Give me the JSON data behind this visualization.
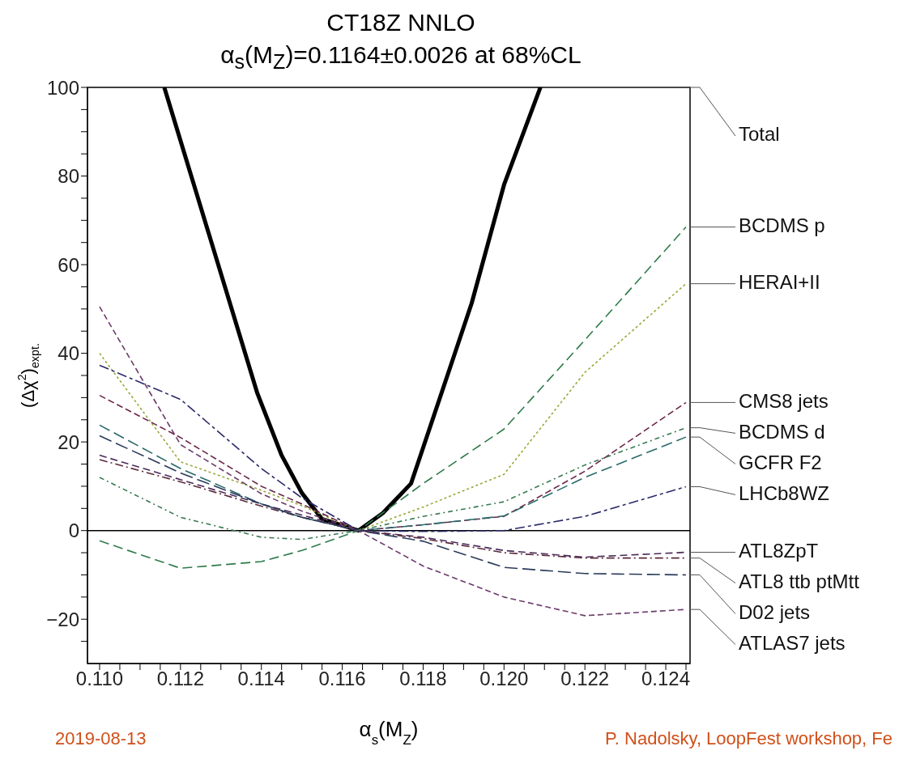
{
  "chart_data": {
    "type": "line",
    "title": "CT18Z NNLO",
    "subtitle": "α$_{s}$(M$_{Z}$)=0.1164±0.0026 at 68%CL",
    "xlabel": "α$_{s}$(M$_{Z}$)",
    "ylabel": "(Δχ$^{2}$)$_{expt.}$",
    "annotations": [
      "2019-08-13",
      "P. Nadolsky, LoopFest workshop, Fe"
    ],
    "x": [
      0.11,
      0.112,
      0.114,
      0.115,
      0.1164,
      0.118,
      0.12,
      0.122,
      0.1245
    ],
    "xlim": [
      0.1097,
      0.1246
    ],
    "xticks": [
      {
        "value": 0.11,
        "label": "0.110"
      },
      {
        "value": 0.1105,
        "label": null
      },
      {
        "value": 0.111,
        "label": null
      },
      {
        "value": 0.1115,
        "label": null
      },
      {
        "value": 0.112,
        "label": "0.112"
      },
      {
        "value": 0.1125,
        "label": null
      },
      {
        "value": 0.113,
        "label": null
      },
      {
        "value": 0.1135,
        "label": null
      },
      {
        "value": 0.114,
        "label": "0.114"
      },
      {
        "value": 0.1145,
        "label": null
      },
      {
        "value": 0.115,
        "label": null
      },
      {
        "value": 0.1155,
        "label": null
      },
      {
        "value": 0.116,
        "label": "0.116"
      },
      {
        "value": 0.1165,
        "label": null
      },
      {
        "value": 0.117,
        "label": null
      },
      {
        "value": 0.1175,
        "label": null
      },
      {
        "value": 0.118,
        "label": "0.118"
      },
      {
        "value": 0.1185,
        "label": null
      },
      {
        "value": 0.119,
        "label": null
      },
      {
        "value": 0.1195,
        "label": null
      },
      {
        "value": 0.12,
        "label": "0.120"
      },
      {
        "value": 0.1205,
        "label": null
      },
      {
        "value": 0.121,
        "label": null
      },
      {
        "value": 0.1215,
        "label": null
      },
      {
        "value": 0.122,
        "label": "0.122"
      },
      {
        "value": 0.1225,
        "label": null
      },
      {
        "value": 0.123,
        "label": null
      },
      {
        "value": 0.1235,
        "label": null
      },
      {
        "value": 0.124,
        "label": "0.124"
      },
      {
        "value": 0.1245,
        "label": null
      }
    ],
    "ylim": [
      -30,
      100
    ],
    "yticks": [
      {
        "value": -25,
        "label": null
      },
      {
        "value": -20,
        "label": "−20"
      },
      {
        "value": -15,
        "label": null
      },
      {
        "value": -10,
        "label": null
      },
      {
        "value": -5,
        "label": null
      },
      0,
      {
        "value": 5,
        "label": null
      },
      {
        "value": 10,
        "label": null
      },
      {
        "value": 15,
        "label": null
      },
      20,
      {
        "value": 25,
        "label": null
      },
      {
        "value": 30,
        "label": null
      },
      {
        "value": 35,
        "label": null
      },
      40,
      {
        "value": 45,
        "label": null
      },
      {
        "value": 50,
        "label": null
      },
      {
        "value": 55,
        "label": null
      },
      60,
      {
        "value": 65,
        "label": null
      },
      {
        "value": 70,
        "label": null
      },
      {
        "value": 75,
        "label": null
      },
      80,
      {
        "value": 85,
        "label": null
      },
      {
        "value": 90,
        "label": null
      },
      {
        "value": 95,
        "label": null
      },
      100
    ],
    "ref_lines": [
      {
        "axis": "y",
        "value": 0,
        "color": "#000000",
        "line_style": "solid"
      }
    ],
    "grid": false,
    "series": [
      {
        "name": "Total",
        "color": "#000000",
        "line_style": "solid",
        "x": [
          0.1116,
          0.112,
          0.1131,
          0.1139,
          0.1145,
          0.115,
          0.1155,
          0.1164,
          0.117,
          0.1177,
          0.118,
          0.1187,
          0.1192,
          0.12,
          0.1209
        ],
        "values": [
          100,
          88,
          55,
          31,
          17,
          8.5,
          2.6,
          0,
          3.9,
          10.6,
          18.7,
          37.7,
          51.3,
          78,
          100
        ]
      },
      {
        "name": "BCDMS p",
        "color": "#2e7a4a",
        "line_style": "dashed",
        "values": [
          -2.3,
          -8.5,
          -7,
          -4.5,
          0,
          10.6,
          22.9,
          43,
          68.5
        ]
      },
      {
        "name": "HERAI+II",
        "color": "#9aa83a",
        "line_style": "dotted",
        "values": [
          40,
          15.5,
          9.1,
          5.6,
          0,
          5.3,
          12.7,
          35.7,
          55.7
        ]
      },
      {
        "name": "CMS8 jets",
        "color": "#6b2548",
        "line_style": "dashed",
        "values": [
          30.5,
          21,
          10,
          6,
          0,
          1.3,
          3.2,
          13.4,
          28.9
        ]
      },
      {
        "name": "BCDMS d",
        "color": "#3a7a52",
        "line_style": "dashed",
        "values": [
          12,
          3,
          -1.5,
          -2,
          0,
          3.2,
          6.5,
          14.8,
          23.2
        ]
      },
      {
        "name": "GCFR F2",
        "color": "#2a6a6a",
        "line_style": "dashed",
        "values": [
          23.8,
          14,
          6,
          3,
          0,
          1.3,
          3.3,
          12,
          21.1
        ]
      },
      {
        "name": "LHCb8WZ",
        "color": "#2a2a6a",
        "line_style": "dashed",
        "values": [
          37.3,
          29.6,
          14,
          7.4,
          0,
          -0.2,
          0,
          3.2,
          9.9
        ]
      },
      {
        "name": "ATL8ZpT",
        "color": "#4a2a5a",
        "line_style": "dashed",
        "values": [
          17,
          11.5,
          6,
          3.5,
          0,
          -1.5,
          -4.5,
          -6,
          -4.9
        ]
      },
      {
        "name": "ATL8 ttb ptMtt",
        "color": "#5a2a3a",
        "line_style": "dashed",
        "values": [
          16,
          11,
          5.5,
          3,
          0,
          -1.8,
          -5,
          -6.2,
          -6.2
        ]
      },
      {
        "name": "D02 jets",
        "color": "#2a3a5a",
        "line_style": "dashed",
        "values": [
          21.4,
          13,
          6,
          3,
          0,
          -2.4,
          -8.3,
          -9.7,
          -10
        ]
      },
      {
        "name": "ATLAS7 jets",
        "color": "#6a3a6a",
        "line_style": "dashed",
        "values": [
          50.5,
          19.4,
          8.3,
          4.4,
          0,
          -8,
          -15,
          -19.2,
          -17.8
        ]
      }
    ]
  }
}
